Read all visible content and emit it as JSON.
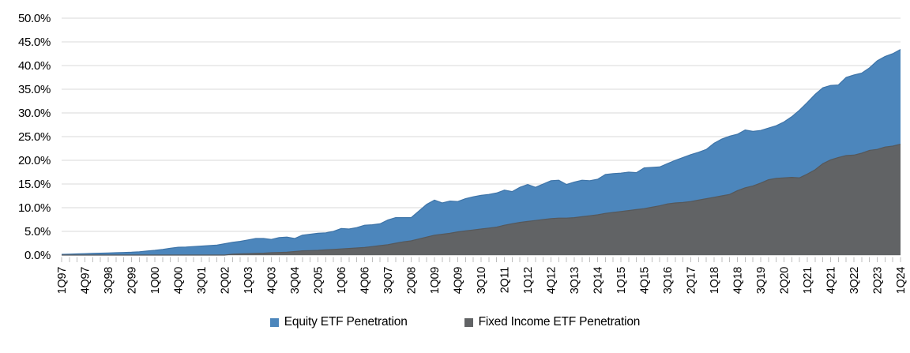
{
  "chart_data": {
    "type": "area",
    "stacked": false,
    "title": "",
    "xlabel": "",
    "ylabel": "",
    "y_axis": {
      "min": 0,
      "max": 50,
      "step": 5,
      "unit": "%"
    },
    "y_tick_labels": [
      "0.0%",
      "5.0%",
      "10.0%",
      "15.0%",
      "20.0%",
      "25.0%",
      "30.0%",
      "35.0%",
      "40.0%",
      "45.0%",
      "50.0%"
    ],
    "x_tick_labels": [
      "1Q97",
      "4Q97",
      "3Q98",
      "2Q99",
      "1Q00",
      "4Q00",
      "3Q01",
      "2Q02",
      "1Q03",
      "4Q03",
      "3Q04",
      "2Q05",
      "1Q06",
      "4Q06",
      "3Q07",
      "2Q08",
      "1Q09",
      "4Q09",
      "3Q10",
      "2Q11",
      "1Q12",
      "4Q12",
      "3Q13",
      "2Q14",
      "1Q15",
      "4Q15",
      "3Q16",
      "2Q17",
      "1Q18",
      "4Q18",
      "3Q19",
      "2Q20",
      "1Q21",
      "4Q21",
      "3Q22",
      "2Q23",
      "1Q24"
    ],
    "x_label_every_n_points": 3,
    "grid": "horizontal",
    "legend_position": "bottom-center",
    "colors": {
      "gridline": "#d9d9d9",
      "axis": "#bfbfbf",
      "text": "#000000"
    },
    "series": [
      {
        "name": "Equity ETF Penetration",
        "color": "#4c86bc",
        "edge_color": "#3e74a8",
        "values": [
          0.15,
          0.2,
          0.25,
          0.3,
          0.35,
          0.4,
          0.45,
          0.5,
          0.55,
          0.6,
          0.7,
          0.85,
          1.0,
          1.2,
          1.45,
          1.65,
          1.7,
          1.8,
          1.9,
          2.0,
          2.1,
          2.4,
          2.7,
          2.9,
          3.2,
          3.5,
          3.5,
          3.3,
          3.7,
          3.8,
          3.5,
          4.2,
          4.4,
          4.6,
          4.7,
          5.0,
          5.6,
          5.5,
          5.8,
          6.3,
          6.4,
          6.6,
          7.4,
          7.9,
          7.9,
          7.9,
          9.3,
          10.7,
          11.6,
          11.0,
          11.4,
          11.3,
          11.9,
          12.3,
          12.6,
          12.8,
          13.1,
          13.7,
          13.4,
          14.3,
          14.9,
          14.3,
          15.0,
          15.7,
          15.8,
          14.9,
          15.4,
          15.8,
          15.7,
          16.0,
          17.0,
          17.2,
          17.3,
          17.5,
          17.4,
          18.4,
          18.5,
          18.6,
          19.3,
          20.0,
          20.6,
          21.2,
          21.7,
          22.3,
          23.6,
          24.5,
          25.1,
          25.5,
          26.4,
          26.1,
          26.3,
          26.8,
          27.3,
          28.1,
          29.2,
          30.6,
          32.2,
          33.9,
          35.3,
          35.8,
          35.9,
          37.5,
          38.0,
          38.4,
          39.5,
          41.0,
          41.9,
          42.5,
          43.4
        ]
      },
      {
        "name": "Fixed Income ETF Penetration",
        "color": "#616365",
        "edge_color": "#56585a",
        "values": [
          0,
          0,
          0,
          0,
          0,
          0,
          0,
          0,
          0,
          0,
          0,
          0,
          0,
          0,
          0,
          0,
          0,
          0,
          0,
          0,
          0,
          0,
          0.2,
          0.25,
          0.3,
          0.35,
          0.4,
          0.5,
          0.55,
          0.6,
          0.75,
          0.9,
          0.95,
          1.0,
          1.1,
          1.2,
          1.3,
          1.4,
          1.5,
          1.6,
          1.8,
          2.0,
          2.2,
          2.5,
          2.8,
          3.0,
          3.4,
          3.8,
          4.2,
          4.4,
          4.6,
          4.9,
          5.1,
          5.3,
          5.5,
          5.7,
          5.9,
          6.3,
          6.6,
          6.9,
          7.1,
          7.3,
          7.5,
          7.7,
          7.8,
          7.8,
          7.9,
          8.1,
          8.3,
          8.5,
          8.8,
          9.0,
          9.2,
          9.4,
          9.6,
          9.8,
          10.1,
          10.4,
          10.8,
          11.0,
          11.1,
          11.3,
          11.6,
          11.9,
          12.2,
          12.5,
          12.8,
          13.6,
          14.2,
          14.6,
          15.2,
          15.9,
          16.2,
          16.3,
          16.4,
          16.3,
          17.1,
          18.0,
          19.3,
          20.1,
          20.6,
          21.0,
          21.1,
          21.5,
          22.1,
          22.3,
          22.8,
          23.0,
          23.4
        ]
      }
    ]
  }
}
